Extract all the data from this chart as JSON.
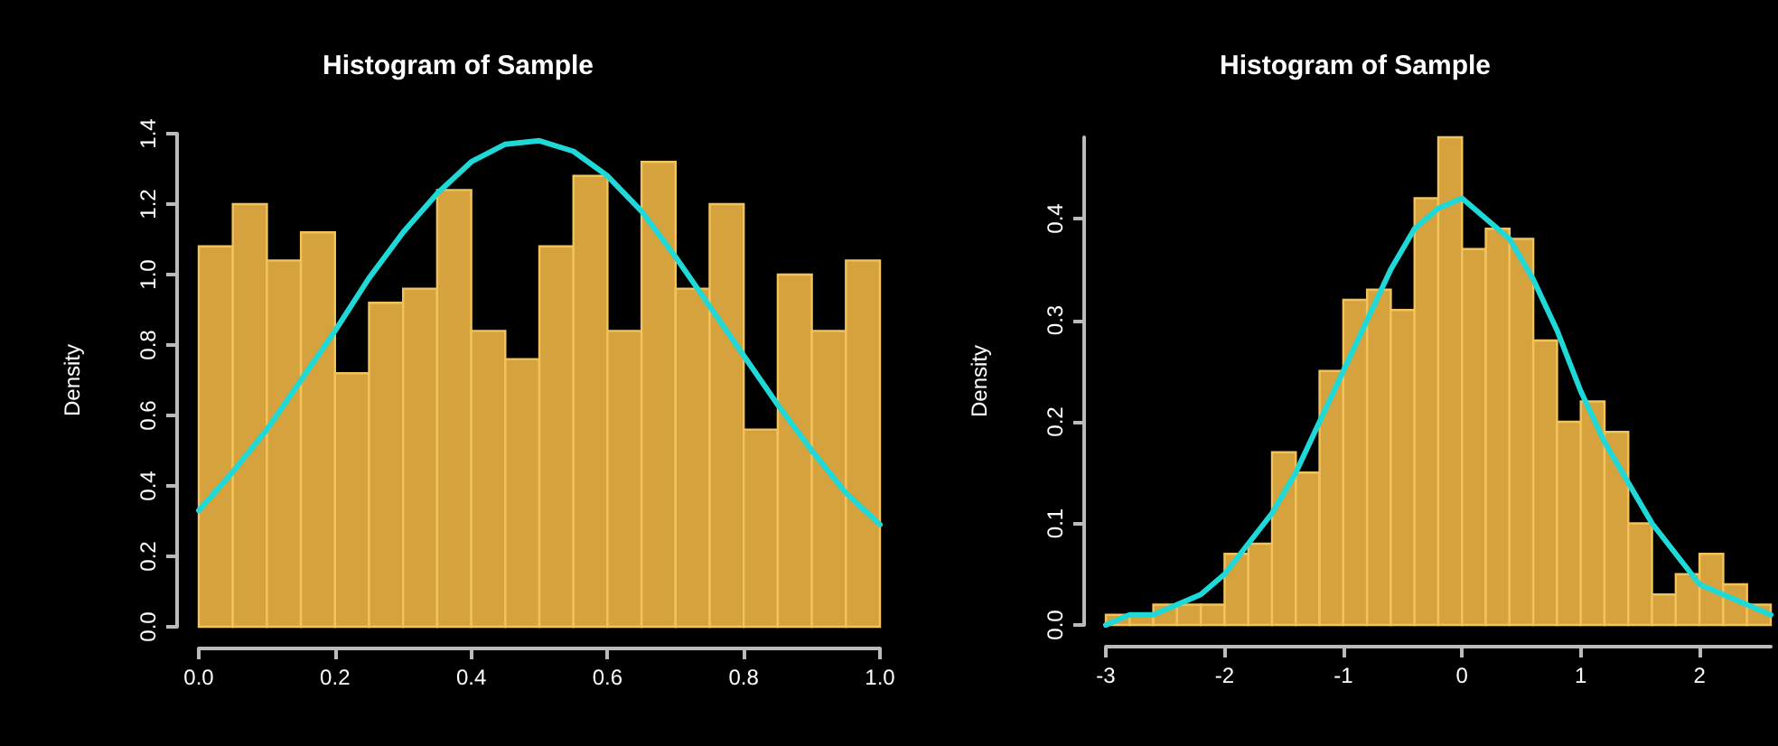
{
  "chart_data": [
    {
      "type": "histogram",
      "title": "Histogram of Sample",
      "ylabel": "Density",
      "color": "#d6a23e",
      "bins": [
        0,
        0.05,
        0.1,
        0.15,
        0.2,
        0.25,
        0.3,
        0.35,
        0.4,
        0.45,
        0.5,
        0.55,
        0.6,
        0.65,
        0.7,
        0.75,
        0.8,
        0.85,
        0.9,
        0.95,
        1.0
      ],
      "values": [
        1.08,
        1.2,
        1.04,
        1.12,
        0.72,
        0.92,
        0.96,
        1.24,
        0.84,
        0.76,
        1.08,
        1.28,
        0.84,
        1.32,
        0.96,
        1.2,
        0.56,
        1.0,
        0.84,
        1.04
      ],
      "series": [
        {
          "type": "line",
          "color": "#1fd8d8",
          "x": [
            0,
            0.05,
            0.1,
            0.15,
            0.2,
            0.25,
            0.3,
            0.35,
            0.4,
            0.45,
            0.5,
            0.55,
            0.6,
            0.65,
            0.7,
            0.75,
            0.8,
            0.85,
            0.9,
            0.95,
            1.0
          ],
          "values": [
            0.33,
            0.44,
            0.56,
            0.7,
            0.84,
            0.99,
            1.12,
            1.23,
            1.32,
            1.37,
            1.38,
            1.35,
            1.28,
            1.18,
            1.05,
            0.91,
            0.77,
            0.63,
            0.5,
            0.38,
            0.29
          ]
        }
      ],
      "xlim": [
        0,
        1
      ],
      "xticks": [
        {
          "value": 0,
          "label": "0.0"
        },
        {
          "value": 0.2,
          "label": "0.2"
        },
        {
          "value": 0.4,
          "label": "0.4"
        },
        {
          "value": 0.6,
          "label": "0.6"
        },
        {
          "value": 0.8,
          "label": "0.8"
        },
        {
          "value": 1,
          "label": "1.0"
        }
      ],
      "ylim": [
        0,
        1.4
      ],
      "yticks": [
        {
          "value": 0,
          "label": "0.0"
        },
        {
          "value": 0.2,
          "label": "0.2"
        },
        {
          "value": 0.4,
          "label": "0.4"
        },
        {
          "value": 0.6,
          "label": "0.6"
        },
        {
          "value": 0.8,
          "label": "0.8"
        },
        {
          "value": 1,
          "label": "1.0"
        },
        {
          "value": 1.2,
          "label": "1.2"
        },
        {
          "value": 1.4,
          "label": "1.4"
        }
      ],
      "grid": false,
      "marker": "none",
      "line_style": "solid"
    },
    {
      "type": "histogram",
      "title": "Histogram of Sample",
      "ylabel": "Density",
      "color": "#d6a23e",
      "bins": [
        -3,
        -2.8,
        -2.6,
        -2.4,
        -2.2,
        -2,
        -1.8,
        -1.6,
        -1.4,
        -1.2,
        -1,
        -0.8,
        -0.6,
        -0.4,
        -0.2,
        0,
        0.2,
        0.4,
        0.6,
        0.8,
        1,
        1.2,
        1.4,
        1.6,
        1.8,
        2,
        2.2,
        2.4,
        2.6
      ],
      "values": [
        0.01,
        0.01,
        0.02,
        0.02,
        0.02,
        0.07,
        0.08,
        0.17,
        0.15,
        0.25,
        0.32,
        0.33,
        0.31,
        0.42,
        0.48,
        0.37,
        0.39,
        0.38,
        0.28,
        0.2,
        0.22,
        0.19,
        0.1,
        0.03,
        0.05,
        0.07,
        0.04,
        0.02
      ],
      "series": [
        {
          "type": "line",
          "color": "#1fd8d8",
          "x": [
            -3,
            -2.8,
            -2.6,
            -2.4,
            -2.2,
            -2,
            -1.8,
            -1.6,
            -1.4,
            -1.2,
            -1,
            -0.8,
            -0.6,
            -0.4,
            -0.2,
            0,
            0.2,
            0.4,
            0.6,
            0.8,
            1,
            1.2,
            1.4,
            1.6,
            1.8,
            2,
            2.2,
            2.4,
            2.6
          ],
          "values": [
            0.0,
            0.01,
            0.01,
            0.02,
            0.03,
            0.05,
            0.08,
            0.11,
            0.15,
            0.2,
            0.25,
            0.3,
            0.35,
            0.39,
            0.41,
            0.42,
            0.4,
            0.38,
            0.34,
            0.29,
            0.23,
            0.18,
            0.14,
            0.1,
            0.07,
            0.04,
            0.03,
            0.02,
            0.01
          ]
        }
      ],
      "xlim": [
        -3,
        2.6
      ],
      "xticks": [
        -3,
        -2,
        -1,
        0,
        1,
        2
      ],
      "ylim": [
        0,
        0.48
      ],
      "yticks": [
        {
          "value": 0,
          "label": "0.0"
        },
        {
          "value": 0.1,
          "label": "0.1"
        },
        {
          "value": 0.2,
          "label": "0.2"
        },
        {
          "value": 0.3,
          "label": "0.3"
        },
        {
          "value": 0.4,
          "label": "0.4"
        }
      ],
      "grid": false,
      "marker": "none",
      "line_style": "solid"
    }
  ]
}
